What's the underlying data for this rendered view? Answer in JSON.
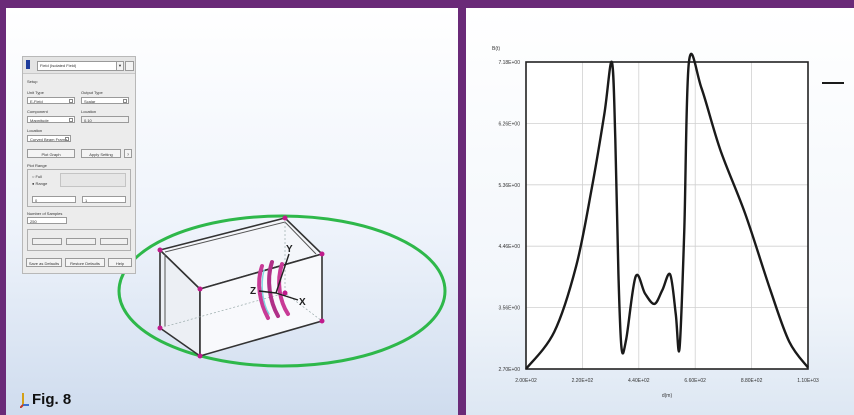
{
  "figure_label": "Fig. 8",
  "dialog": {
    "combo_value": "Field (Isolated Field)",
    "small_button_1": "▼",
    "small_button_2": "",
    "section_label": "Setup",
    "row1_label_left": "Unit Type",
    "row1_label_right": "Output Type",
    "row1_value_left": "E-Field",
    "row1_value_right": "Scalar",
    "row2_label_left": "Component",
    "row2_label_right": "Location",
    "row2_value_left": "Magnitude",
    "row2_value_right": "0.10",
    "row3_label": "Location",
    "row3_value": "Curved Beam Frame",
    "btn_plot_graph": "Plot Graph",
    "btn_apply_setting": "Apply Setting",
    "plot_range_label": "Plot Range",
    "radio_full": "Full",
    "radio_range": "Range",
    "range_from": "0",
    "range_to": "1",
    "samples_label": "Number of Samples",
    "samples_value": "250",
    "btn_save_defaults": "Save as Defaults",
    "btn_restore_defaults": "Restore Defaults",
    "btn_help": "Help"
  },
  "scene": {
    "axis_labels": {
      "x": "X",
      "y": "Y",
      "z": "Z"
    },
    "colors": {
      "ellipse": "#2eb84a",
      "box_vertex": "#c01a8c",
      "coil": "#c83a96",
      "axis_triad": "#202020"
    }
  },
  "chart_data": {
    "type": "line",
    "title": "",
    "ylabel": "B(t)",
    "xlabel": "d(m)",
    "x_tick_labels": [
      "2.00E+02",
      "2.20E+02",
      "4.40E+02",
      "6.60E+02",
      "8.80E+02",
      "1.10E+03"
    ],
    "y_tick_labels": [
      "7.18E+00",
      "6.26E+00",
      "5.36E+00",
      "4.46E+00",
      "3.56E+00",
      "2.70E+00"
    ],
    "xlim": [
      2.0,
      11.0
    ],
    "ylim": [
      2.7,
      7.18
    ],
    "grid": true,
    "legend": "right",
    "series": [
      {
        "name": "",
        "color": "#1a1a1a",
        "x": [
          2.0,
          2.9,
          3.6,
          4.1,
          4.5,
          4.74,
          4.85,
          4.95,
          5.05,
          5.2,
          5.5,
          5.8,
          6.1,
          6.35,
          6.6,
          6.78,
          6.9,
          7.05,
          7.2,
          7.6,
          8.2,
          9.0,
          9.8,
          10.4,
          11.0
        ],
        "y": [
          2.7,
          3.24,
          4.2,
          5.34,
          6.42,
          7.18,
          6.06,
          4.08,
          3.0,
          3.14,
          4.05,
          3.8,
          3.65,
          3.85,
          4.08,
          3.5,
          3.0,
          4.7,
          7.18,
          6.8,
          5.9,
          4.96,
          3.85,
          3.1,
          2.72
        ]
      }
    ]
  }
}
